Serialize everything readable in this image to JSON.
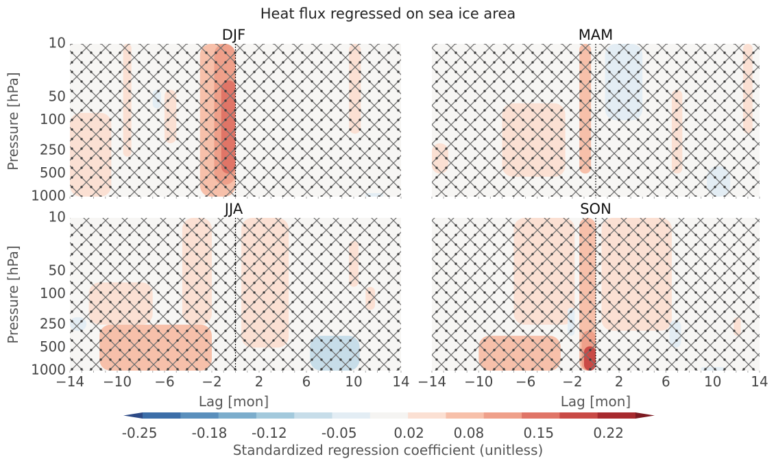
{
  "figure": {
    "title": "Heat flux regressed on sea ice area"
  },
  "chart_data": {
    "type": "heatmap",
    "title": "Heat flux regressed on sea ice area",
    "xlabel": "Lag [mon]",
    "ylabel": "Pressure [hPa]",
    "xlim": [
      -14,
      14
    ],
    "ylim": [
      1000,
      10
    ],
    "yscale": "log",
    "x_ticks": [
      -14,
      -10,
      -6,
      -2,
      2,
      6,
      10,
      14
    ],
    "x_tick_labels": [
      "−14",
      "−10",
      "−6",
      "−2",
      "2",
      "6",
      "10",
      "14"
    ],
    "y_ticks": [
      10,
      50,
      100,
      250,
      500,
      1000
    ],
    "y_tick_labels": [
      "10",
      "50",
      "100",
      "250",
      "500",
      "1000"
    ],
    "zero_line_x": 0,
    "hatch": {
      "x_hatch": "not significant",
      "dots": "not significant"
    },
    "colorbar": {
      "label": "Standardized regression coefficient (unitless)",
      "tick_values": [
        -0.25,
        -0.18,
        -0.12,
        -0.05,
        0.02,
        0.08,
        0.15,
        0.22
      ],
      "tick_labels": [
        "-0.25",
        "-0.18",
        "-0.12",
        "-0.05",
        "0.02",
        "0.08",
        "0.15",
        "0.22"
      ],
      "colors": [
        "#2d4a86",
        "#3c6ea8",
        "#5a8fbc",
        "#7cadcc",
        "#a3c9dc",
        "#c7dde9",
        "#e3edf4",
        "#f5f4f2",
        "#fbe0d3",
        "#f7c0aa",
        "#efa08a",
        "#e07567",
        "#c94a46",
        "#a72a2f",
        "#7d1b22"
      ],
      "extend": "both"
    },
    "panels": [
      {
        "name": "DJF",
        "features": [
          {
            "x0": -14,
            "x1": -10.5,
            "p0": 1000,
            "p1": 80,
            "value": 0.05
          },
          {
            "x0": -9.5,
            "x1": -8.8,
            "p0": 300,
            "p1": 10,
            "value": 0.04
          },
          {
            "x0": -6,
            "x1": -5,
            "p0": 200,
            "p1": 40,
            "value": 0.04
          },
          {
            "x0": -3,
            "x1": 0,
            "p0": 1000,
            "p1": 10,
            "value": 0.06
          },
          {
            "x0": -1.8,
            "x1": 0,
            "p0": 700,
            "p1": 10,
            "value": 0.1
          },
          {
            "x0": -1.2,
            "x1": 0,
            "p0": 500,
            "p1": 30,
            "value": 0.14
          },
          {
            "x0": -7,
            "x1": -6.3,
            "p0": 70,
            "p1": 40,
            "value": -0.04
          },
          {
            "x0": 9.6,
            "x1": 10.6,
            "p0": 150,
            "p1": 10,
            "value": 0.04
          },
          {
            "x0": 11,
            "x1": 12.5,
            "p0": 1000,
            "p1": 900,
            "value": -0.04
          }
        ]
      },
      {
        "name": "MAM",
        "features": [
          {
            "x0": -1.4,
            "x1": -0.4,
            "p0": 500,
            "p1": 10,
            "value": 0.07
          },
          {
            "x0": -8,
            "x1": -2.6,
            "p0": 550,
            "p1": 60,
            "value": 0.05
          },
          {
            "x0": -14,
            "x1": -12.6,
            "p0": 500,
            "p1": 200,
            "value": 0.05
          },
          {
            "x0": 0.8,
            "x1": 4,
            "p0": 100,
            "p1": 10,
            "value": -0.05
          },
          {
            "x0": 6.5,
            "x1": 7.4,
            "p0": 500,
            "p1": 40,
            "value": 0.04
          },
          {
            "x0": 9.5,
            "x1": 11.5,
            "p0": 1000,
            "p1": 400,
            "value": -0.05
          },
          {
            "x0": 12.6,
            "x1": 13.4,
            "p0": 150,
            "p1": 10,
            "value": 0.04
          }
        ]
      },
      {
        "name": "JJA",
        "features": [
          {
            "x0": -11.5,
            "x1": -2,
            "p0": 1000,
            "p1": 250,
            "value": 0.06
          },
          {
            "x0": -9,
            "x1": -3,
            "p0": 1000,
            "p1": 520,
            "value": 0.09
          },
          {
            "x0": -12.4,
            "x1": -7,
            "p0": 250,
            "p1": 70,
            "value": 0.04
          },
          {
            "x0": -4.5,
            "x1": -2,
            "p0": 250,
            "p1": 10,
            "value": 0.04
          },
          {
            "x0": -14,
            "x1": -12.6,
            "p0": 300,
            "p1": 200,
            "value": -0.04
          },
          {
            "x0": 6.3,
            "x1": 10.5,
            "p0": 1000,
            "p1": 350,
            "value": -0.06
          },
          {
            "x0": 0.5,
            "x1": 4.5,
            "p0": 500,
            "p1": 10,
            "value": 0.04
          },
          {
            "x0": 9.6,
            "x1": 10.4,
            "p0": 80,
            "p1": 20,
            "value": 0.04
          },
          {
            "x0": 11,
            "x1": 11.8,
            "p0": 160,
            "p1": 80,
            "value": 0.04
          }
        ]
      },
      {
        "name": "SON",
        "features": [
          {
            "x0": -1.4,
            "x1": 0,
            "p0": 1000,
            "p1": 10,
            "value": 0.07
          },
          {
            "x0": -1.2,
            "x1": 0,
            "p0": 1000,
            "p1": 300,
            "value": 0.12
          },
          {
            "x0": -1,
            "x1": 0,
            "p0": 1000,
            "p1": 480,
            "value": 0.18
          },
          {
            "x0": -10,
            "x1": -3,
            "p0": 1000,
            "p1": 350,
            "value": 0.06
          },
          {
            "x0": -7,
            "x1": -1.8,
            "p0": 250,
            "p1": 10,
            "value": 0.04
          },
          {
            "x0": 0.5,
            "x1": 6.5,
            "p0": 300,
            "p1": 10,
            "value": 0.04
          },
          {
            "x0": -2.4,
            "x1": -1.8,
            "p0": 350,
            "p1": 150,
            "value": -0.04
          },
          {
            "x0": 6.3,
            "x1": 7.3,
            "p0": 500,
            "p1": 220,
            "value": -0.05
          },
          {
            "x0": 9,
            "x1": 11,
            "p0": 1000,
            "p1": 900,
            "value": -0.04
          },
          {
            "x0": 11.8,
            "x1": 12.4,
            "p0": 350,
            "p1": 200,
            "value": 0.04
          }
        ]
      }
    ]
  }
}
